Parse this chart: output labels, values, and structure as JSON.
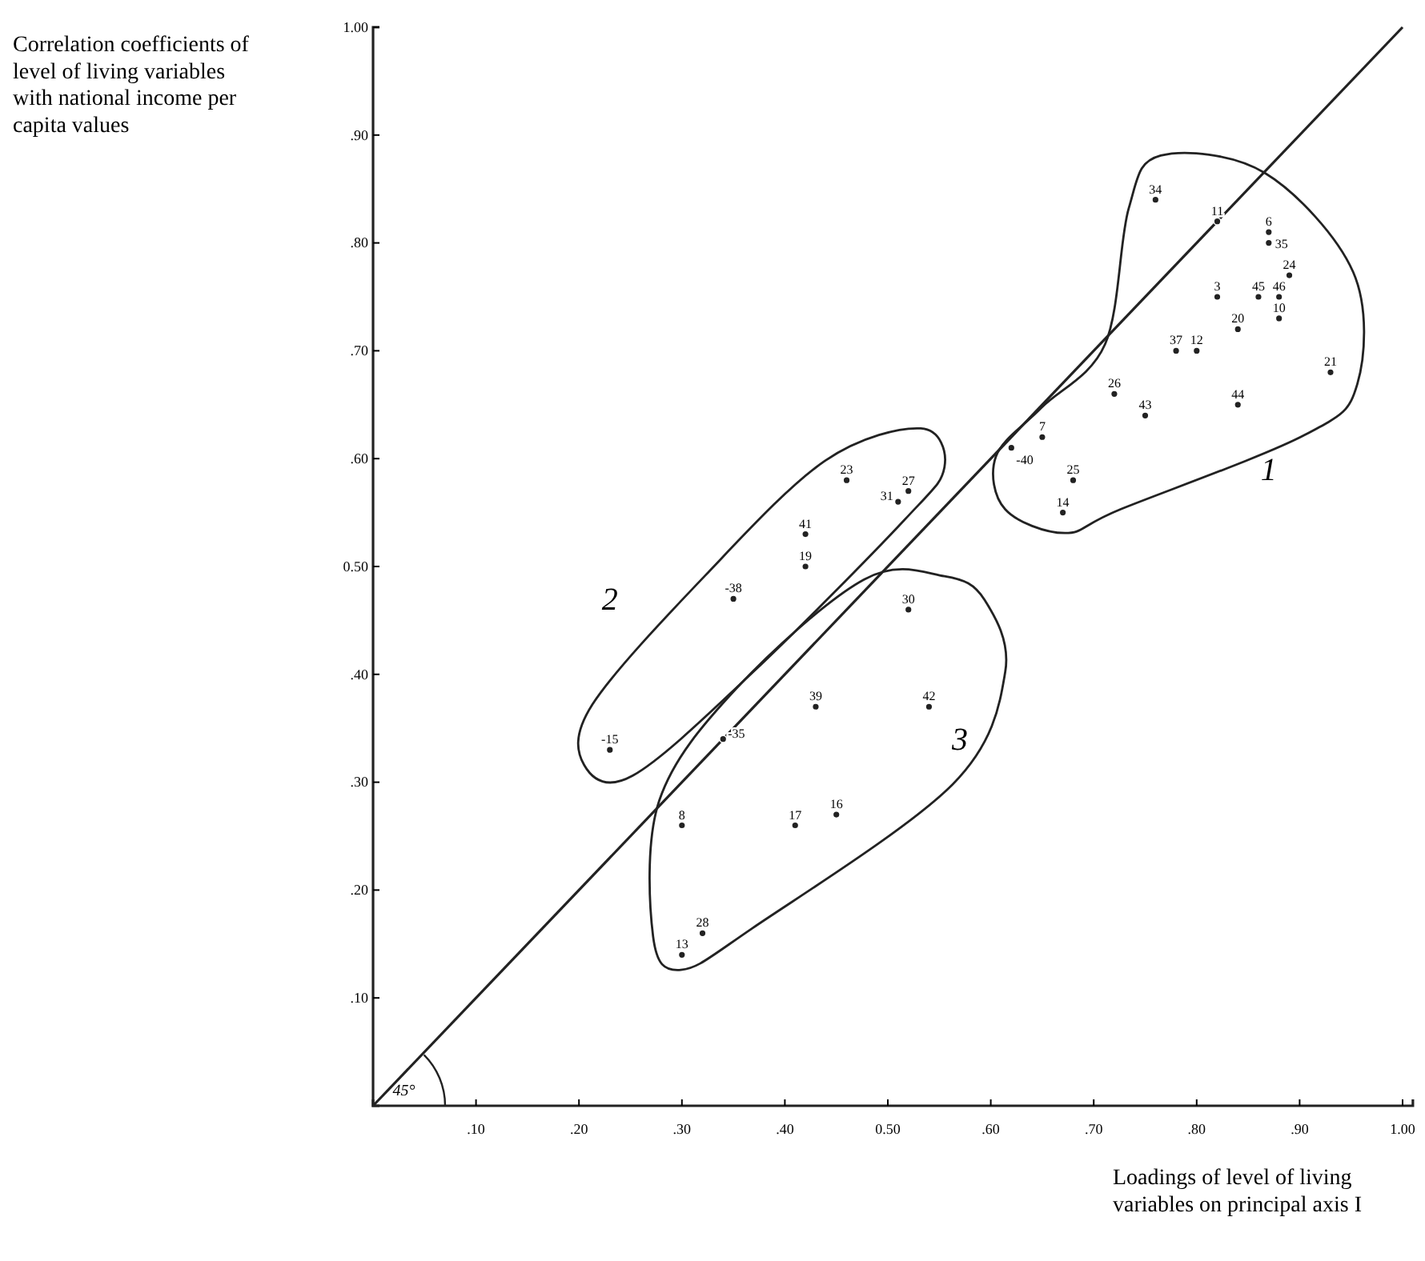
{
  "chart_data": {
    "type": "scatter",
    "ylabel": "Correlation coefficients of level of living variables with national income per capita values",
    "xlabel": "Loadings of level of living variables on principal axis I",
    "xlim": [
      0,
      1.01
    ],
    "ylim": [
      0,
      1
    ],
    "xticks": [
      {
        "value": 0.1,
        "label": ".10"
      },
      {
        "value": 0.2,
        "label": ".20"
      },
      {
        "value": 0.3,
        "label": ".30"
      },
      {
        "value": 0.4,
        "label": ".40"
      },
      {
        "value": 0.5,
        "label": "0.50"
      },
      {
        "value": 0.6,
        "label": ".60"
      },
      {
        "value": 0.7,
        "label": ".70"
      },
      {
        "value": 0.8,
        "label": ".80"
      },
      {
        "value": 0.9,
        "label": ".90"
      },
      {
        "value": 1,
        "label": "1.00"
      }
    ],
    "yticks": [
      {
        "value": 0.1,
        "label": ".10"
      },
      {
        "value": 0.2,
        "label": ".20"
      },
      {
        "value": 0.3,
        "label": ".30"
      },
      {
        "value": 0.4,
        "label": ".40"
      },
      {
        "value": 0.5,
        "label": "0.50"
      },
      {
        "value": 0.6,
        "label": ".60"
      },
      {
        "value": 0.7,
        "label": ".70"
      },
      {
        "value": 0.8,
        "label": ".80"
      },
      {
        "value": 0.9,
        "label": ".90"
      },
      {
        "value": 1,
        "label": "1.00"
      }
    ],
    "series": [
      {
        "color": "#222222",
        "x": [
          0.76,
          0.82,
          0.87,
          0.87,
          0.89,
          0.82,
          0.86,
          0.88,
          0.88,
          0.84,
          0.78,
          0.8,
          0.93,
          0.72,
          0.75,
          0.84,
          0.65,
          0.62,
          0.68,
          0.67,
          0.46,
          0.51,
          0.52,
          0.42,
          0.42,
          0.35,
          0.52,
          0.43,
          0.54,
          0.23,
          0.34,
          0.3,
          0.41,
          0.45,
          0.32,
          0.3
        ],
        "values": [
          0.84,
          0.82,
          0.81,
          0.8,
          0.77,
          0.75,
          0.75,
          0.75,
          0.73,
          0.72,
          0.7,
          0.7,
          0.68,
          0.66,
          0.64,
          0.65,
          0.62,
          0.61,
          0.58,
          0.55,
          0.58,
          0.56,
          0.57,
          0.53,
          0.5,
          0.47,
          0.46,
          0.37,
          0.37,
          0.33,
          0.34,
          0.26,
          0.26,
          0.27,
          0.16,
          0.14
        ]
      },
      {
        "type": "line",
        "color": "#222222",
        "x": [
          0,
          1
        ],
        "values": [
          0,
          1
        ]
      }
    ],
    "annotations": [
      {
        "text": "34",
        "x": 0.76,
        "y": 0.84
      },
      {
        "text": "11",
        "x": 0.82,
        "y": 0.82
      },
      {
        "text": "6",
        "x": 0.87,
        "y": 0.81
      },
      {
        "text": "35",
        "x": 0.87,
        "y": 0.8
      },
      {
        "text": "24",
        "x": 0.89,
        "y": 0.77
      },
      {
        "text": "3",
        "x": 0.82,
        "y": 0.75
      },
      {
        "text": "45",
        "x": 0.86,
        "y": 0.75
      },
      {
        "text": "46",
        "x": 0.88,
        "y": 0.75
      },
      {
        "text": "10",
        "x": 0.88,
        "y": 0.73
      },
      {
        "text": "20",
        "x": 0.84,
        "y": 0.72
      },
      {
        "text": "37",
        "x": 0.78,
        "y": 0.7
      },
      {
        "text": "12",
        "x": 0.8,
        "y": 0.7
      },
      {
        "text": "21",
        "x": 0.93,
        "y": 0.68
      },
      {
        "text": "26",
        "x": 0.72,
        "y": 0.66
      },
      {
        "text": "43",
        "x": 0.75,
        "y": 0.64
      },
      {
        "text": "44",
        "x": 0.84,
        "y": 0.65
      },
      {
        "text": "7",
        "x": 0.65,
        "y": 0.62
      },
      {
        "text": "-40",
        "x": 0.62,
        "y": 0.61
      },
      {
        "text": "25",
        "x": 0.68,
        "y": 0.58
      },
      {
        "text": "14",
        "x": 0.67,
        "y": 0.55
      },
      {
        "text": "23",
        "x": 0.46,
        "y": 0.58
      },
      {
        "text": "31",
        "x": 0.51,
        "y": 0.56
      },
      {
        "text": "27",
        "x": 0.52,
        "y": 0.57
      },
      {
        "text": "41",
        "x": 0.42,
        "y": 0.53
      },
      {
        "text": "19",
        "x": 0.42,
        "y": 0.5
      },
      {
        "text": "-38",
        "x": 0.35,
        "y": 0.47
      },
      {
        "text": "30",
        "x": 0.52,
        "y": 0.46
      },
      {
        "text": "39",
        "x": 0.43,
        "y": 0.37
      },
      {
        "text": "42",
        "x": 0.54,
        "y": 0.37
      },
      {
        "text": "-15",
        "x": 0.23,
        "y": 0.33
      },
      {
        "text": "-35",
        "x": 0.34,
        "y": 0.34
      },
      {
        "text": "8",
        "x": 0.3,
        "y": 0.26
      },
      {
        "text": "17",
        "x": 0.41,
        "y": 0.26
      },
      {
        "text": "16",
        "x": 0.45,
        "y": 0.27
      },
      {
        "text": "28",
        "x": 0.32,
        "y": 0.16
      },
      {
        "text": "13",
        "x": 0.3,
        "y": 0.14
      },
      "1",
      "2",
      "3",
      "45°"
    ]
  }
}
